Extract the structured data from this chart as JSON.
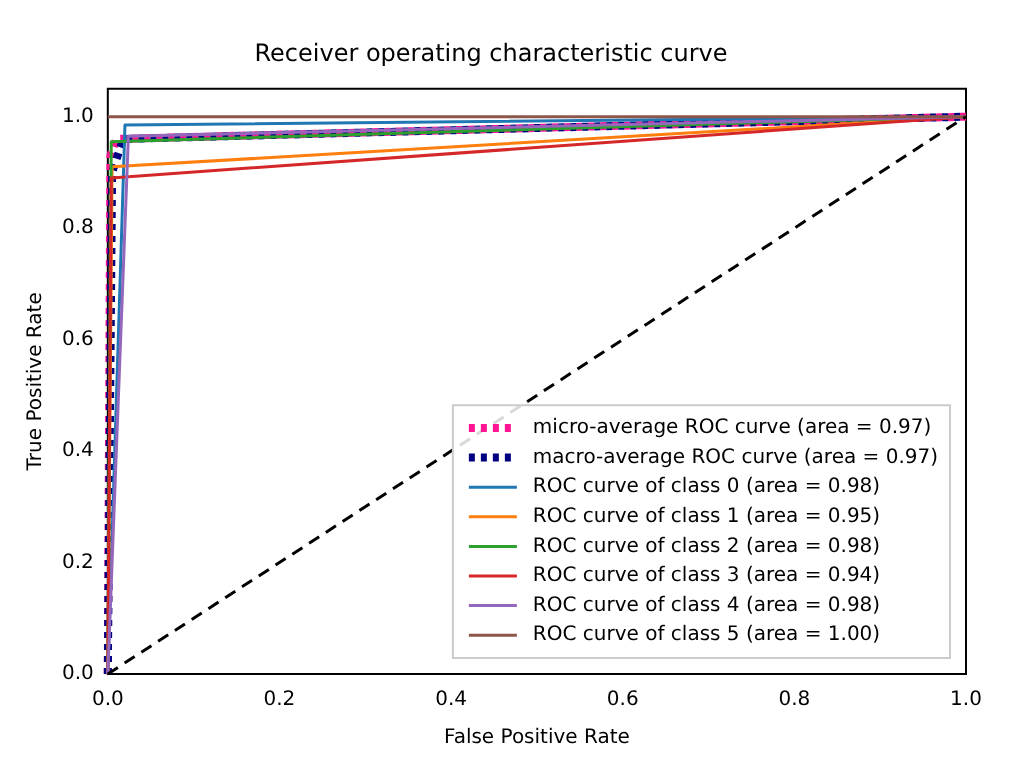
{
  "chart_data": {
    "type": "line",
    "title": "Receiver operating characteristic curve",
    "xlabel": "False Positive Rate",
    "ylabel": "True Positive Rate",
    "xlim": [
      0,
      1
    ],
    "ylim": [
      0,
      1.05
    ],
    "xticks": [
      {
        "value": 0,
        "label": "0.0"
      },
      {
        "value": 0.2,
        "label": "0.2"
      },
      {
        "value": 0.4,
        "label": "0.4"
      },
      {
        "value": 0.6,
        "label": "0.6"
      },
      {
        "value": 0.8,
        "label": "0.8"
      },
      {
        "value": 1,
        "label": "1.0"
      }
    ],
    "yticks": [
      {
        "value": 0,
        "label": "0.0"
      },
      {
        "value": 0.2,
        "label": "0.2"
      },
      {
        "value": 0.4,
        "label": "0.4"
      },
      {
        "value": 0.6,
        "label": "0.6"
      },
      {
        "value": 0.8,
        "label": "0.8"
      },
      {
        "value": 1,
        "label": "1.0"
      }
    ],
    "grid": false,
    "legend": "bottom right",
    "marker": "none",
    "series": [
      {
        "name": "micro-average ROC curve (area = 0.97)",
        "color": "#ff1493",
        "line_style": "dotted",
        "x": [
          0,
          0.003,
          0.01,
          1
        ],
        "values": [
          0,
          0.93,
          0.96,
          1
        ]
      },
      {
        "name": "macro-average ROC curve (area = 0.97)",
        "color": "#000080",
        "line_style": "dotted",
        "x": [
          0,
          0.005,
          0.018,
          1
        ],
        "values": [
          0,
          0.9,
          0.96,
          1
        ]
      },
      {
        "name": "ROC curve of class 0 (area = 0.98)",
        "color": "#1f77b4",
        "line_style": "solid",
        "x": [
          0,
          0.02,
          1
        ],
        "values": [
          0,
          0.985,
          1
        ]
      },
      {
        "name": "ROC curve of class 1 (area = 0.95)",
        "color": "#ff7f0e",
        "line_style": "solid",
        "x": [
          0,
          0.005,
          1
        ],
        "values": [
          0,
          0.91,
          1
        ]
      },
      {
        "name": "ROC curve of class 2 (area = 0.98)",
        "color": "#2ca02c",
        "line_style": "solid",
        "x": [
          0,
          0.004,
          1
        ],
        "values": [
          0,
          0.955,
          1
        ]
      },
      {
        "name": "ROC curve of class 3 (area = 0.94)",
        "color": "#d62728",
        "line_style": "solid",
        "x": [
          0,
          0.004,
          1
        ],
        "values": [
          0,
          0.89,
          1
        ]
      },
      {
        "name": "ROC curve of class 4 (area = 0.98)",
        "color": "#9467bd",
        "line_style": "solid",
        "x": [
          0,
          0.024,
          1
        ],
        "values": [
          0,
          0.965,
          1
        ]
      },
      {
        "name": "ROC curve of class 5 (area = 1.00)",
        "color": "#8c564b",
        "line_style": "solid",
        "x": [
          0,
          1
        ],
        "values": [
          1,
          1
        ]
      },
      {
        "color": "#000000",
        "line_style": "dashed",
        "x": [
          0,
          1
        ],
        "values": [
          0,
          1
        ]
      }
    ]
  }
}
